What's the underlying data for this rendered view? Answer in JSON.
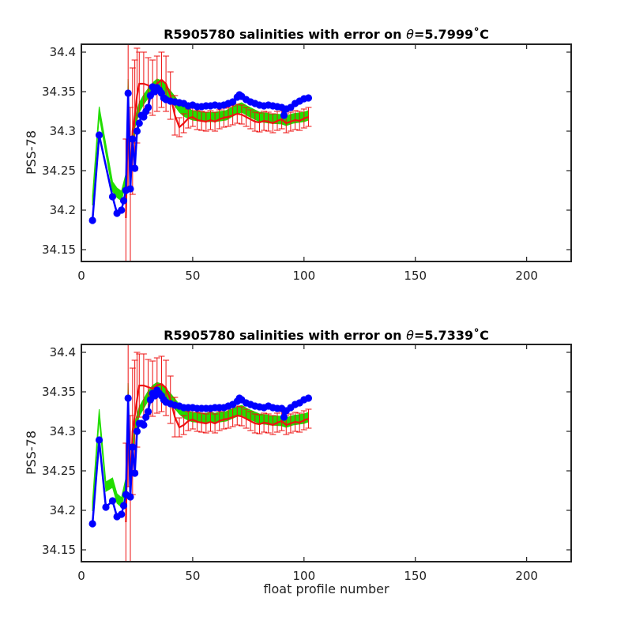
{
  "chart_data": [
    {
      "type": "line",
      "title": "R5905780 salinities with error on θ=5.7999˚C",
      "title_parts": {
        "prefix": "R5905780 salinities with error on ",
        "theta": "θ",
        "suffix": "=5.7999˚C"
      },
      "xlabel": "",
      "ylabel": "PSS-78",
      "xlim": [
        0,
        220
      ],
      "ylim": [
        34.135,
        34.41
      ],
      "xticks": [
        0,
        50,
        100,
        150,
        200
      ],
      "yticks": [
        34.15,
        34.2,
        34.25,
        34.3,
        34.35,
        34.4
      ],
      "xtick_labels": [
        "0",
        "50",
        "100",
        "150",
        "200"
      ],
      "ytick_labels": [
        "34.15",
        "34.2",
        "34.25",
        "34.3",
        "34.35",
        "34.4"
      ],
      "colors": {
        "blue": "#0000ff",
        "red": "#ee1111",
        "green": "#22dd00",
        "axes": "#222222"
      },
      "series": [
        {
          "x": [
            5,
            8,
            14,
            16,
            18,
            19,
            20,
            21,
            22,
            23,
            24,
            25,
            26,
            27,
            28,
            29,
            30,
            31,
            32,
            33,
            34,
            35,
            36,
            37,
            38,
            40,
            42,
            44,
            46,
            48,
            50,
            52,
            54,
            56,
            58,
            60,
            62,
            64,
            66,
            68,
            70,
            71,
            72,
            74,
            76,
            78,
            80,
            82,
            84,
            86,
            88,
            90,
            91,
            92,
            94,
            96,
            98,
            100,
            102
          ],
          "values": [
            34.187,
            34.295,
            34.217,
            34.196,
            34.2,
            34.212,
            34.225,
            34.348,
            34.227,
            34.29,
            34.253,
            34.3,
            34.31,
            34.32,
            34.318,
            34.325,
            34.33,
            34.345,
            34.356,
            34.35,
            34.355,
            34.352,
            34.348,
            34.342,
            34.34,
            34.338,
            34.337,
            34.336,
            34.335,
            34.332,
            34.333,
            34.331,
            34.331,
            34.332,
            34.332,
            34.333,
            34.332,
            34.333,
            34.335,
            34.337,
            34.343,
            34.346,
            34.344,
            34.34,
            34.337,
            34.335,
            34.333,
            34.332,
            34.333,
            34.332,
            34.331,
            34.33,
            34.32,
            34.328,
            34.33,
            34.335,
            34.338,
            34.341,
            34.342
          ]
        },
        {
          "x": [
            20,
            21,
            22,
            23,
            24,
            25,
            26,
            28,
            30,
            32,
            34,
            36,
            38,
            40,
            42,
            44,
            46,
            48,
            50,
            52,
            54,
            56,
            58,
            60,
            62,
            64,
            66,
            68,
            70,
            72,
            74,
            76,
            78,
            80,
            82,
            84,
            86,
            88,
            90,
            92,
            94,
            96,
            98,
            100,
            102
          ],
          "values": [
            34.19,
            34.33,
            34.23,
            34.3,
            34.32,
            34.345,
            34.36,
            34.36,
            34.358,
            34.355,
            34.36,
            34.365,
            34.36,
            34.345,
            34.32,
            34.305,
            34.31,
            34.316,
            34.318,
            34.314,
            34.313,
            34.312,
            34.314,
            34.312,
            34.315,
            34.317,
            34.318,
            34.32,
            34.322,
            34.321,
            34.318,
            34.315,
            34.312,
            34.311,
            34.313,
            34.312,
            34.31,
            34.313,
            34.315,
            34.31,
            34.312,
            34.314,
            34.313,
            34.316,
            34.318
          ],
          "errors": [
            0.1,
            0.1,
            0.1,
            0.08,
            0.07,
            0.06,
            0.04,
            0.04,
            0.035,
            0.035,
            0.035,
            0.035,
            0.035,
            0.03,
            0.025,
            0.012,
            0.012,
            0.012,
            0.012,
            0.012,
            0.012,
            0.012,
            0.012,
            0.012,
            0.012,
            0.012,
            0.012,
            0.012,
            0.012,
            0.012,
            0.012,
            0.012,
            0.012,
            0.012,
            0.012,
            0.012,
            0.012,
            0.012,
            0.012,
            0.012,
            0.012,
            0.012,
            0.012,
            0.012,
            0.012
          ]
        },
        {
          "x": [
            5,
            8,
            14,
            16,
            18,
            20,
            21,
            22,
            24,
            26,
            28,
            30,
            32,
            34,
            36,
            38,
            40,
            42,
            44,
            46,
            48,
            50,
            55,
            60,
            65,
            70,
            72,
            75,
            80,
            85,
            90,
            92,
            95,
            100,
            102
          ],
          "values": [
            34.212,
            34.325,
            34.23,
            34.222,
            34.218,
            34.24,
            34.36,
            34.24,
            34.31,
            34.33,
            34.34,
            34.348,
            34.355,
            34.36,
            34.358,
            34.352,
            34.345,
            34.338,
            34.33,
            34.325,
            34.322,
            34.32,
            34.318,
            34.318,
            34.32,
            34.328,
            34.33,
            34.325,
            34.318,
            34.316,
            34.315,
            34.313,
            34.316,
            34.318,
            34.32
          ],
          "band": [
            0.006,
            0.006,
            0.006,
            0.006,
            0.006,
            0.006,
            0.006,
            0.006,
            0.006,
            0.006,
            0.006,
            0.006,
            0.006,
            0.006,
            0.006,
            0.006,
            0.006,
            0.006,
            0.006,
            0.006,
            0.006,
            0.006,
            0.006,
            0.006,
            0.006,
            0.006,
            0.006,
            0.006,
            0.006,
            0.006,
            0.006,
            0.006,
            0.006,
            0.006,
            0.006
          ]
        }
      ]
    },
    {
      "type": "line",
      "title": "R5905780 salinities with error on θ=5.7339˚C",
      "title_parts": {
        "prefix": "R5905780 salinities with error on ",
        "theta": "θ",
        "suffix": "=5.7339˚C"
      },
      "xlabel": "float profile number",
      "ylabel": "PSS-78",
      "xlim": [
        0,
        220
      ],
      "ylim": [
        34.135,
        34.41
      ],
      "xticks": [
        0,
        50,
        100,
        150,
        200
      ],
      "yticks": [
        34.15,
        34.2,
        34.25,
        34.3,
        34.35,
        34.4
      ],
      "xtick_labels": [
        "0",
        "50",
        "100",
        "150",
        "200"
      ],
      "ytick_labels": [
        "34.15",
        "34.2",
        "34.25",
        "34.3",
        "34.35",
        "34.4"
      ],
      "colors": {
        "blue": "#0000ff",
        "red": "#ee1111",
        "green": "#22dd00",
        "axes": "#222222"
      },
      "series": [
        {
          "x": [
            5,
            8,
            11,
            14,
            16,
            18,
            19,
            20,
            21,
            22,
            23,
            24,
            25,
            26,
            27,
            28,
            29,
            30,
            31,
            32,
            33,
            34,
            35,
            36,
            37,
            38,
            40,
            42,
            44,
            46,
            48,
            50,
            52,
            54,
            56,
            58,
            60,
            62,
            64,
            66,
            68,
            70,
            71,
            72,
            74,
            76,
            78,
            80,
            82,
            84,
            86,
            88,
            90,
            91,
            92,
            94,
            96,
            98,
            100,
            102
          ],
          "values": [
            34.183,
            34.289,
            34.204,
            34.212,
            34.192,
            34.195,
            34.206,
            34.22,
            34.342,
            34.217,
            34.28,
            34.247,
            34.3,
            34.31,
            34.31,
            34.308,
            34.318,
            34.325,
            34.34,
            34.348,
            34.345,
            34.352,
            34.348,
            34.345,
            34.34,
            34.337,
            34.335,
            34.333,
            34.332,
            34.33,
            34.33,
            34.33,
            34.329,
            34.329,
            34.329,
            34.329,
            34.33,
            34.33,
            34.33,
            34.332,
            34.334,
            34.338,
            34.342,
            34.34,
            34.336,
            34.334,
            34.332,
            34.331,
            34.33,
            34.332,
            34.33,
            34.329,
            34.329,
            34.318,
            34.326,
            34.33,
            34.334,
            34.336,
            34.34,
            34.342
          ]
        },
        {
          "x": [
            20,
            21,
            22,
            23,
            24,
            25,
            26,
            28,
            30,
            32,
            34,
            36,
            38,
            40,
            42,
            44,
            46,
            48,
            50,
            52,
            54,
            56,
            58,
            60,
            62,
            64,
            66,
            68,
            70,
            72,
            74,
            76,
            78,
            80,
            82,
            84,
            86,
            88,
            90,
            92,
            94,
            96,
            98,
            100,
            102
          ],
          "values": [
            34.185,
            34.33,
            34.22,
            34.3,
            34.32,
            34.34,
            34.358,
            34.358,
            34.356,
            34.354,
            34.358,
            34.36,
            34.355,
            34.34,
            34.318,
            34.305,
            34.308,
            34.313,
            34.315,
            34.312,
            34.311,
            34.31,
            34.312,
            34.31,
            34.313,
            34.315,
            34.316,
            34.318,
            34.32,
            34.319,
            34.316,
            34.313,
            34.31,
            34.309,
            34.311,
            34.31,
            34.308,
            34.311,
            34.313,
            34.308,
            34.31,
            34.312,
            34.311,
            34.314,
            34.316
          ],
          "errors": [
            0.1,
            0.1,
            0.1,
            0.08,
            0.07,
            0.06,
            0.04,
            0.04,
            0.035,
            0.035,
            0.035,
            0.035,
            0.035,
            0.03,
            0.025,
            0.012,
            0.012,
            0.012,
            0.012,
            0.012,
            0.012,
            0.012,
            0.012,
            0.012,
            0.012,
            0.012,
            0.012,
            0.012,
            0.012,
            0.012,
            0.012,
            0.012,
            0.012,
            0.012,
            0.012,
            0.012,
            0.012,
            0.012,
            0.012,
            0.012,
            0.012,
            0.012,
            0.012,
            0.012,
            0.012
          ]
        },
        {
          "x": [
            5,
            8,
            11,
            14,
            16,
            18,
            20,
            21,
            22,
            24,
            26,
            28,
            30,
            32,
            34,
            36,
            38,
            40,
            42,
            44,
            46,
            48,
            50,
            55,
            60,
            65,
            70,
            72,
            75,
            80,
            85,
            90,
            92,
            95,
            100,
            102
          ],
          "values": [
            34.205,
            34.322,
            34.23,
            34.235,
            34.215,
            34.21,
            34.235,
            34.355,
            34.235,
            34.305,
            34.325,
            34.335,
            34.345,
            34.352,
            34.356,
            34.354,
            34.348,
            34.342,
            34.335,
            34.328,
            34.323,
            34.32,
            34.318,
            34.317,
            34.317,
            34.319,
            34.325,
            34.327,
            34.322,
            34.316,
            34.314,
            34.313,
            34.311,
            34.314,
            34.316,
            34.318
          ],
          "band": [
            0.006,
            0.006,
            0.006,
            0.006,
            0.006,
            0.006,
            0.006,
            0.006,
            0.006,
            0.006,
            0.006,
            0.006,
            0.006,
            0.006,
            0.006,
            0.006,
            0.006,
            0.006,
            0.006,
            0.006,
            0.006,
            0.006,
            0.006,
            0.006,
            0.006,
            0.006,
            0.006,
            0.006,
            0.006,
            0.006,
            0.006,
            0.006,
            0.006,
            0.006,
            0.006,
            0.006
          ]
        }
      ]
    }
  ]
}
